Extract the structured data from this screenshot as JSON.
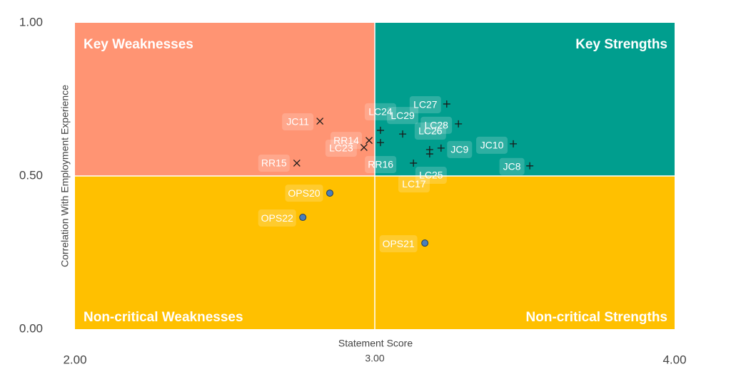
{
  "chart_data": {
    "type": "scatter",
    "x_label": "Statement Score",
    "y_label": "Correlation With Employment Experience",
    "xlim": [
      2,
      4
    ],
    "ylim": [
      0,
      1
    ],
    "xticks": [
      {
        "value": 2,
        "label": "2.00"
      },
      {
        "value": 3,
        "label": "3.00"
      },
      {
        "value": 4,
        "label": "4.00"
      }
    ],
    "yticks": [
      {
        "value": 0,
        "label": "0.00"
      },
      {
        "value": 0.5,
        "label": "0.50"
      },
      {
        "value": 1,
        "label": "1.00"
      }
    ],
    "quadrant_split": {
      "x": 3,
      "y": 0.5
    },
    "quadrants": [
      {
        "label": "Key Weaknesses",
        "color": "#ff9473",
        "corner": "top-left"
      },
      {
        "label": "Key Strengths",
        "color": "#009e8e",
        "corner": "top-right"
      },
      {
        "label": "Non-critical Weaknesses",
        "color": "#ffc000",
        "corner": "bottom-left"
      },
      {
        "label": "Non-critical Strengths",
        "color": "#ffc000",
        "corner": "bottom-right"
      }
    ],
    "series": [
      {
        "marker": "x",
        "color": "#1a1a1a",
        "labels": [
          "JC11",
          "RR14",
          "LC23",
          "RR15"
        ],
        "x": [
          2.817,
          2.981,
          2.964,
          2.74
        ],
        "values": [
          0.679,
          0.616,
          0.593,
          0.542
        ]
      },
      {
        "marker": "plus",
        "color": "#1a1a1a",
        "labels": [
          "LC27",
          "LC24",
          "LC29",
          "LC28",
          "LC26",
          "JC9",
          "JC10",
          "JC8",
          "RR16",
          "LC25",
          "LC17"
        ],
        "x": [
          3.24,
          3.019,
          3.093,
          3.279,
          3.183,
          3.221,
          3.462,
          3.517,
          3.129,
          3.183,
          3.019
        ],
        "values": [
          0.735,
          0.649,
          0.637,
          0.67,
          0.586,
          0.591,
          0.605,
          0.533,
          0.542,
          0.572,
          0.609
        ]
      },
      {
        "marker": "circle",
        "color": "#4a7ebb",
        "labels": [
          "OPS20",
          "OPS22",
          "OPS21"
        ],
        "x": [
          2.85,
          2.76,
          3.167
        ],
        "values": [
          0.444,
          0.365,
          0.281
        ]
      }
    ]
  }
}
